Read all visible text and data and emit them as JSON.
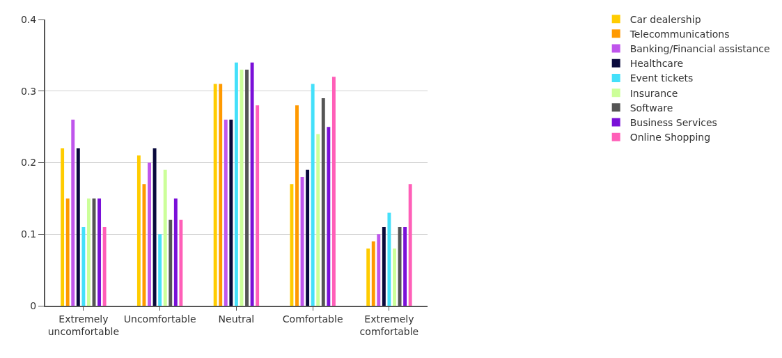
{
  "chart_data": {
    "type": "bar",
    "categories": [
      "Extremely uncomfortable",
      "Uncomfortable",
      "Neutral",
      "Comfortable",
      "Extremely comfortable"
    ],
    "series": [
      {
        "name": "Car dealership",
        "color": "#ffcc00",
        "values": [
          0.22,
          0.21,
          0.31,
          0.17,
          0.08
        ]
      },
      {
        "name": "Telecommunications",
        "color": "#ff9900",
        "values": [
          0.15,
          0.17,
          0.31,
          0.28,
          0.09
        ]
      },
      {
        "name": "Banking/Financial assistance",
        "color": "#bf55ec",
        "values": [
          0.26,
          0.2,
          0.26,
          0.18,
          0.1
        ]
      },
      {
        "name": "Healthcare",
        "color": "#0a0a3c",
        "values": [
          0.22,
          0.22,
          0.26,
          0.19,
          0.11
        ]
      },
      {
        "name": "Event tickets",
        "color": "#44e0fa",
        "values": [
          0.11,
          0.1,
          0.34,
          0.31,
          0.13
        ]
      },
      {
        "name": "Insurance",
        "color": "#ccff99",
        "values": [
          0.15,
          0.19,
          0.33,
          0.24,
          0.08
        ]
      },
      {
        "name": "Software",
        "color": "#555555",
        "values": [
          0.15,
          0.12,
          0.33,
          0.29,
          0.11
        ]
      },
      {
        "name": "Business Services",
        "color": "#7a10d8",
        "values": [
          0.15,
          0.15,
          0.34,
          0.25,
          0.11
        ]
      },
      {
        "name": "Online Shopping",
        "color": "#ff5fb8",
        "values": [
          0.11,
          0.12,
          0.28,
          0.32,
          0.17
        ]
      }
    ],
    "ylim": [
      0,
      0.4
    ],
    "yticks": [
      0,
      0.1,
      0.2,
      0.3,
      0.4
    ],
    "grid": "y",
    "legend": "top right"
  }
}
